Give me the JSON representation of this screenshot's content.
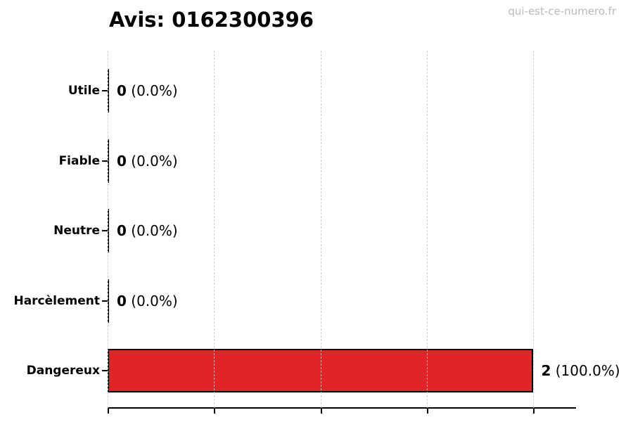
{
  "page": {
    "title": "Avis: 0162300396",
    "watermark": "qui-est-ce-numero.fr"
  },
  "colors": {
    "background": "#ffffff",
    "bar_fill": "#e02427",
    "bar_edge": "#000000",
    "grid": "#c8c8c8",
    "axis": "#000000",
    "text": "#000000",
    "watermark": "#bbbbbb"
  },
  "chart_data": {
    "type": "bar",
    "orientation": "horizontal",
    "title": "Avis: 0162300396",
    "categories": [
      "Utile",
      "Fiable",
      "Neutre",
      "Harcèlement",
      "Dangereux"
    ],
    "values": [
      0,
      0,
      0,
      0,
      2
    ],
    "rows": [
      {
        "label": "Utile",
        "value": 0,
        "count": "0",
        "percent": "(0.0%)"
      },
      {
        "label": "Fiable",
        "value": 0,
        "count": "0",
        "percent": "(0.0%)"
      },
      {
        "label": "Neutre",
        "value": 0,
        "count": "0",
        "percent": "(0.0%)"
      },
      {
        "label": "Harcèlement",
        "value": 0,
        "count": "0",
        "percent": "(0.0%)"
      },
      {
        "label": "Dangereux",
        "value": 2,
        "count": "2",
        "percent": "(100.0%)"
      }
    ],
    "annotation_format": "count (percent)",
    "xlabel": "",
    "ylabel": "",
    "xlim": [
      0,
      2.2
    ],
    "xticks": [
      0,
      0.5,
      1,
      1.5,
      2
    ],
    "xtick_labels_visible": false,
    "grid": true,
    "grid_style": "dashed-vertical",
    "legend": false,
    "bar_color": "#e02427",
    "bar_edge_color": "#000000"
  }
}
